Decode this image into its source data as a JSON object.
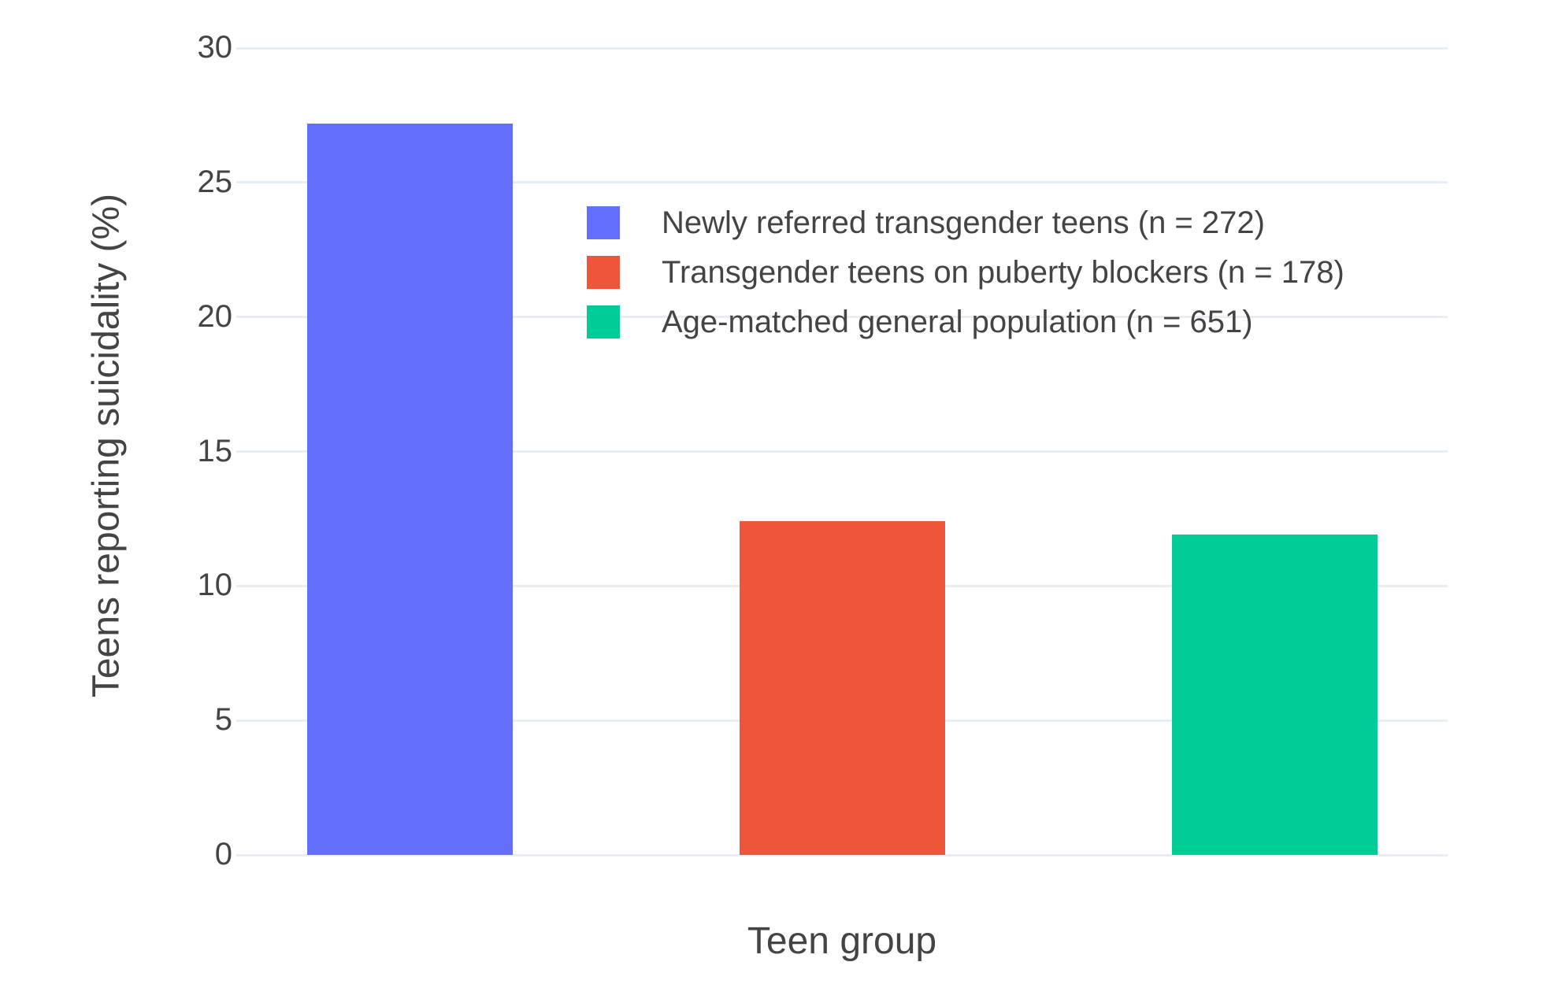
{
  "chart_data": {
    "type": "bar",
    "title": "",
    "xlabel": "Teen group",
    "ylabel": "Teens reporting suicidality (%)",
    "series": [
      {
        "name": "Newly referred transgender teens (n = 272)",
        "value": 27.2,
        "color": "#636EFA"
      },
      {
        "name": "Transgender teens on puberty blockers (n = 178)",
        "value": 12.4,
        "color": "#EF553B"
      },
      {
        "name": "Age-matched general population (n = 651)",
        "value": 11.9,
        "color": "#00CC96"
      }
    ],
    "values": [
      27.2,
      12.4,
      11.9
    ],
    "yticks": [
      0,
      5,
      10,
      15,
      20,
      25,
      30
    ],
    "ylim": [
      0,
      30
    ],
    "x_tick_labels_shown": false,
    "grid": true,
    "legend_position": "inside-top-center",
    "grid_color": "#E9EEF6",
    "text_color": "#444444",
    "background": "#FFFFFF"
  }
}
